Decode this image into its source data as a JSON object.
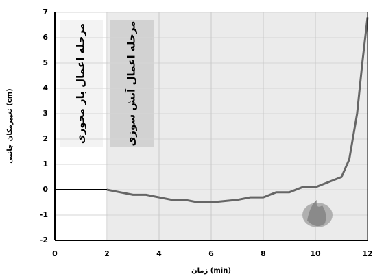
{
  "chart_data": {
    "type": "line",
    "x_label": "زمان (min)",
    "y_label": "تغییرمکان جانبی (cm)",
    "annotations": [
      "مرحله اعمال بار محوری",
      "مرحله اعمال آتش سوزی"
    ],
    "series": [
      {
        "color": "#000000",
        "x": [
          0,
          2
        ],
        "values": [
          0,
          0
        ]
      },
      {
        "color": "#666666",
        "x": [
          2,
          2.5,
          3,
          3.5,
          4,
          4.5,
          5,
          5.5,
          6,
          6.5,
          7,
          7.5,
          8,
          8.5,
          9,
          9.5,
          10,
          10.5,
          11,
          11.3,
          11.6,
          11.8,
          12
        ],
        "values": [
          0,
          -0.1,
          -0.2,
          -0.2,
          -0.3,
          -0.4,
          -0.4,
          -0.5,
          -0.5,
          -0.45,
          -0.4,
          -0.3,
          -0.3,
          -0.1,
          -0.1,
          0.1,
          0.1,
          0.3,
          0.5,
          1.2,
          3,
          5,
          6.8
        ]
      }
    ],
    "xlim": [
      0,
      12
    ],
    "xticks": [
      0,
      2,
      4,
      6,
      8,
      10,
      12
    ],
    "ylim": [
      -2,
      7
    ],
    "yticks": [
      -2,
      -1,
      0,
      1,
      2,
      3,
      4,
      5,
      6,
      7
    ],
    "grid": true
  }
}
